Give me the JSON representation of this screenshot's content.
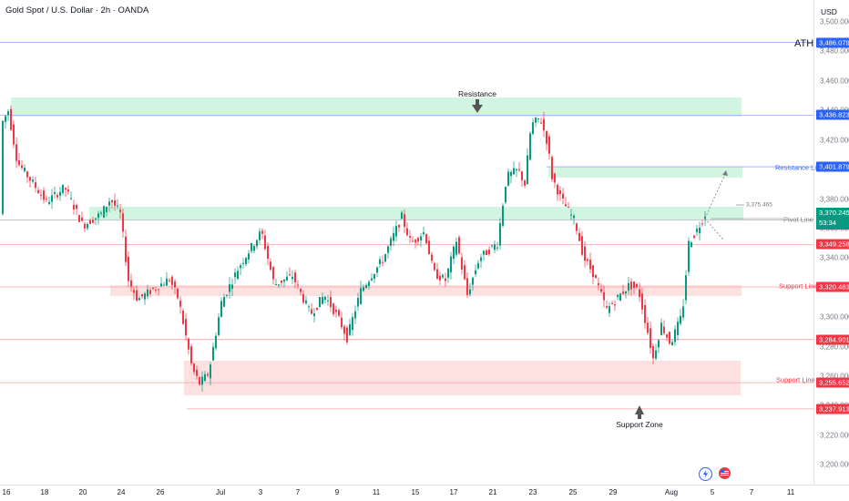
{
  "header": {
    "title": "Gold Spot / U.S. Dollar · 2h · OANDA"
  },
  "currency": "USD",
  "price_axis": {
    "ticks": [
      "3,500.000",
      "3,480.000",
      "3,460.000",
      "3,440.000",
      "3,420.000",
      "3,400.000",
      "3,380.000",
      "3,360.000",
      "3,340.000",
      "3,320.000",
      "3,300.000",
      "3,280.000",
      "3,260.000",
      "3,240.000",
      "3,220.000",
      "3,200.000"
    ],
    "tick_values": [
      3500,
      3480,
      3460,
      3440,
      3420,
      3400,
      3380,
      3360,
      3340,
      3320,
      3300,
      3280,
      3260,
      3240,
      3220,
      3200
    ]
  },
  "time_axis": {
    "labels": [
      "16",
      "18",
      "20",
      "24",
      "26",
      "Jul",
      "3",
      "7",
      "9",
      "11",
      "15",
      "17",
      "21",
      "23",
      "25",
      "29",
      "Aug",
      "5",
      "7",
      "11"
    ]
  },
  "badges": [
    {
      "text": "3,486.079",
      "value": 3486.079,
      "color": "#2962ff"
    },
    {
      "text": "3,436.823",
      "value": 3436.823,
      "color": "#2962ff"
    },
    {
      "text": "3,401.879",
      "value": 3401.879,
      "color": "#2962ff"
    },
    {
      "text": "3,365.835",
      "value": 3365.835,
      "color": "#787b86"
    },
    {
      "text": "3,349.258",
      "value": 3349.258,
      "color": "#f23645"
    },
    {
      "text": "3,320.483",
      "value": 3320.483,
      "color": "#f23645"
    },
    {
      "text": "3,284.901",
      "value": 3284.901,
      "color": "#f23645"
    },
    {
      "text": "3,255.652",
      "value": 3255.652,
      "color": "#f23645"
    },
    {
      "text": "3,237.913",
      "value": 3237.913,
      "color": "#f23645"
    }
  ],
  "current_price": {
    "value_text": "3,370.245",
    "countdown": "53:34",
    "value": 3370.245
  },
  "annotations": {
    "resistance_label": "Resistance",
    "support_zone_label": "Support Zone",
    "ath_label": "ATH",
    "resistance_line_label": "Resistance Line",
    "pivot_line_label": "Pivot Line",
    "support_line_label_1": "Support Line",
    "support_line_label_2": "Support Line",
    "projection_value": "3,375.465"
  },
  "colors": {
    "bull": "#089981",
    "bear": "#f23645",
    "blue": "#2962ff",
    "green_zone": "#d1f5e0",
    "red_zone": "#fde0e0"
  },
  "chart_data": {
    "type": "candlestick",
    "symbol": "XAUUSD",
    "interval": "2h",
    "ylim": [
      3190,
      3505
    ],
    "key_points": [
      {
        "date": "Jun 16",
        "price": 3440
      },
      {
        "date": "Jun 20",
        "price": 3375
      },
      {
        "date": "Jun 24",
        "price": 3320
      },
      {
        "date": "Jun 27",
        "price": 3250
      },
      {
        "date": "Jul 3",
        "price": 3360
      },
      {
        "date": "Jul 9",
        "price": 3285
      },
      {
        "date": "Jul 15",
        "price": 3370
      },
      {
        "date": "Jul 17",
        "price": 3310
      },
      {
        "date": "Jul 23",
        "price": 3438
      },
      {
        "date": "Jul 25",
        "price": 3370
      },
      {
        "date": "Jul 30",
        "price": 3270
      },
      {
        "date": "Aug 1",
        "price": 3290
      },
      {
        "date": "Aug 4",
        "price": 3370
      }
    ],
    "levels": [
      {
        "name": "ATH",
        "value": 3486.079
      },
      {
        "name": "Resistance",
        "value": 3436.823
      },
      {
        "name": "Resistance Line",
        "value": 3401.879
      },
      {
        "name": "Pivot Line",
        "value": 3365.835
      },
      {
        "name": "Support Line",
        "value": 3320.483
      },
      {
        "name": "Support Line",
        "value": 3255.652
      },
      {
        "name": "",
        "value": 3237.913
      }
    ]
  }
}
